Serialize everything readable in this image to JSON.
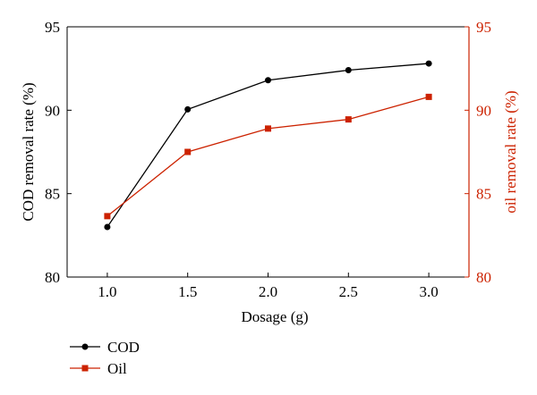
{
  "chart_data": {
    "type": "line",
    "x": [
      1.0,
      1.5,
      2.0,
      2.5,
      3.0
    ],
    "x_tick_labels": [
      "1.0",
      "1.5",
      "2.0",
      "2.5",
      "3.0"
    ],
    "xlim": [
      0.75,
      3.25
    ],
    "xlabel": "Dosage (g)",
    "y_left": {
      "label": "COD removal rate (%)",
      "lim": [
        80,
        95
      ],
      "ticks": [
        80,
        85,
        90,
        95
      ],
      "tick_labels": [
        "80",
        "85",
        "90",
        "95"
      ],
      "color": "#000000"
    },
    "y_right": {
      "label": "oil removal rate (%)",
      "lim": [
        80,
        95
      ],
      "ticks": [
        80,
        85,
        90,
        95
      ],
      "tick_labels": [
        "80",
        "85",
        "90",
        "95"
      ],
      "color": "#cc2200"
    },
    "series": [
      {
        "name": "COD",
        "axis": "left",
        "color": "#000000",
        "marker": "circle",
        "values": [
          83.0,
          90.05,
          91.8,
          92.4,
          92.8
        ]
      },
      {
        "name": "Oil",
        "axis": "right",
        "color": "#cc2200",
        "marker": "square",
        "values": [
          83.65,
          87.5,
          88.9,
          89.45,
          90.8
        ]
      }
    ],
    "legend_position": "bottom-left",
    "grid": false
  }
}
